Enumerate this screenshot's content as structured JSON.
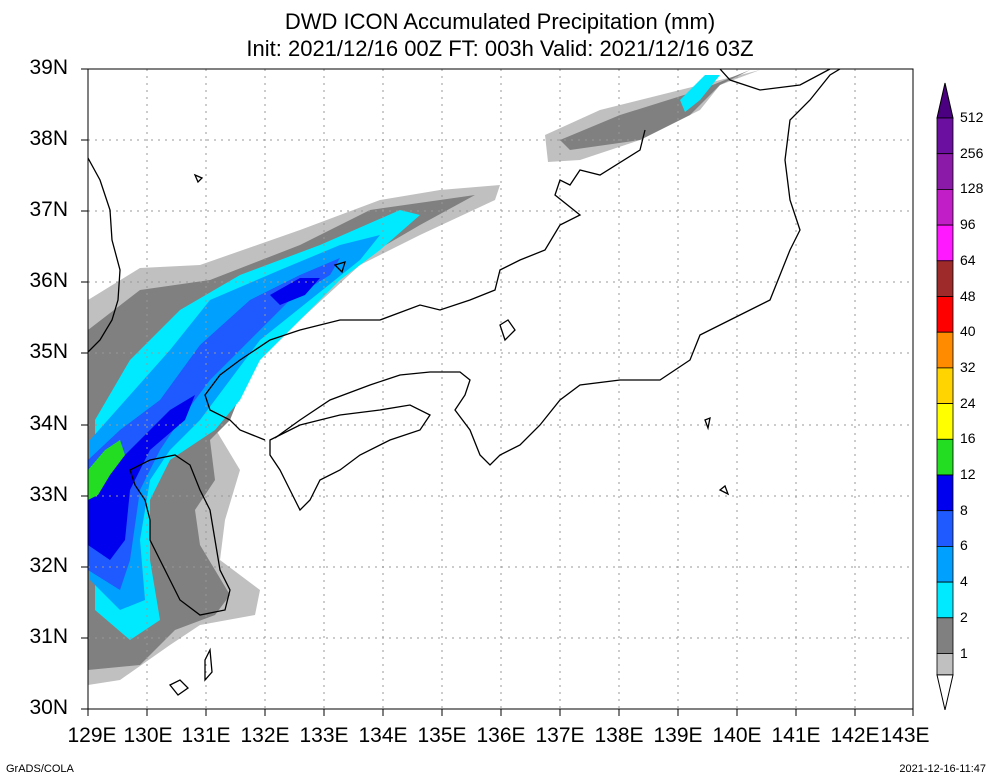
{
  "title": {
    "line1": "DWD ICON Accumulated Precipitation (mm)",
    "line2": "Init: 2021/12/16 00Z  FT: 003h  Valid: 2021/12/16 03Z"
  },
  "axes": {
    "y_ticks": [
      "39N",
      "38N",
      "37N",
      "36N",
      "35N",
      "34N",
      "33N",
      "32N",
      "31N",
      "30N"
    ],
    "x_ticks": [
      "129E",
      "130E",
      "131E",
      "132E",
      "133E",
      "134E",
      "135E",
      "136E",
      "137E",
      "138E",
      "139E",
      "140E",
      "141E",
      "142E",
      "143E"
    ]
  },
  "colorbar": {
    "levels": [
      {
        "label": "512",
        "color": "#6a0fa0"
      },
      {
        "label": "256",
        "color": "#8c1aa8"
      },
      {
        "label": "128",
        "color": "#c21ec8"
      },
      {
        "label": "96",
        "color": "#ff19ff"
      },
      {
        "label": "64",
        "color": "#9e2a2a"
      },
      {
        "label": "48",
        "color": "#ff0000"
      },
      {
        "label": "40",
        "color": "#ff8c00"
      },
      {
        "label": "32",
        "color": "#ffd400"
      },
      {
        "label": "24",
        "color": "#ffff00"
      },
      {
        "label": "16",
        "color": "#22dd22"
      },
      {
        "label": "12",
        "color": "#0000ee"
      },
      {
        "label": "8",
        "color": "#1e5aff"
      },
      {
        "label": "6",
        "color": "#00a0ff"
      },
      {
        "label": "4",
        "color": "#00eaff"
      },
      {
        "label": "2",
        "color": "#808080"
      },
      {
        "label": "1",
        "color": "#c0c0c0"
      }
    ],
    "top_color": "#4a0080"
  },
  "footer": {
    "left": "GrADS/COLA",
    "right": "2021-12-16-11:47"
  }
}
